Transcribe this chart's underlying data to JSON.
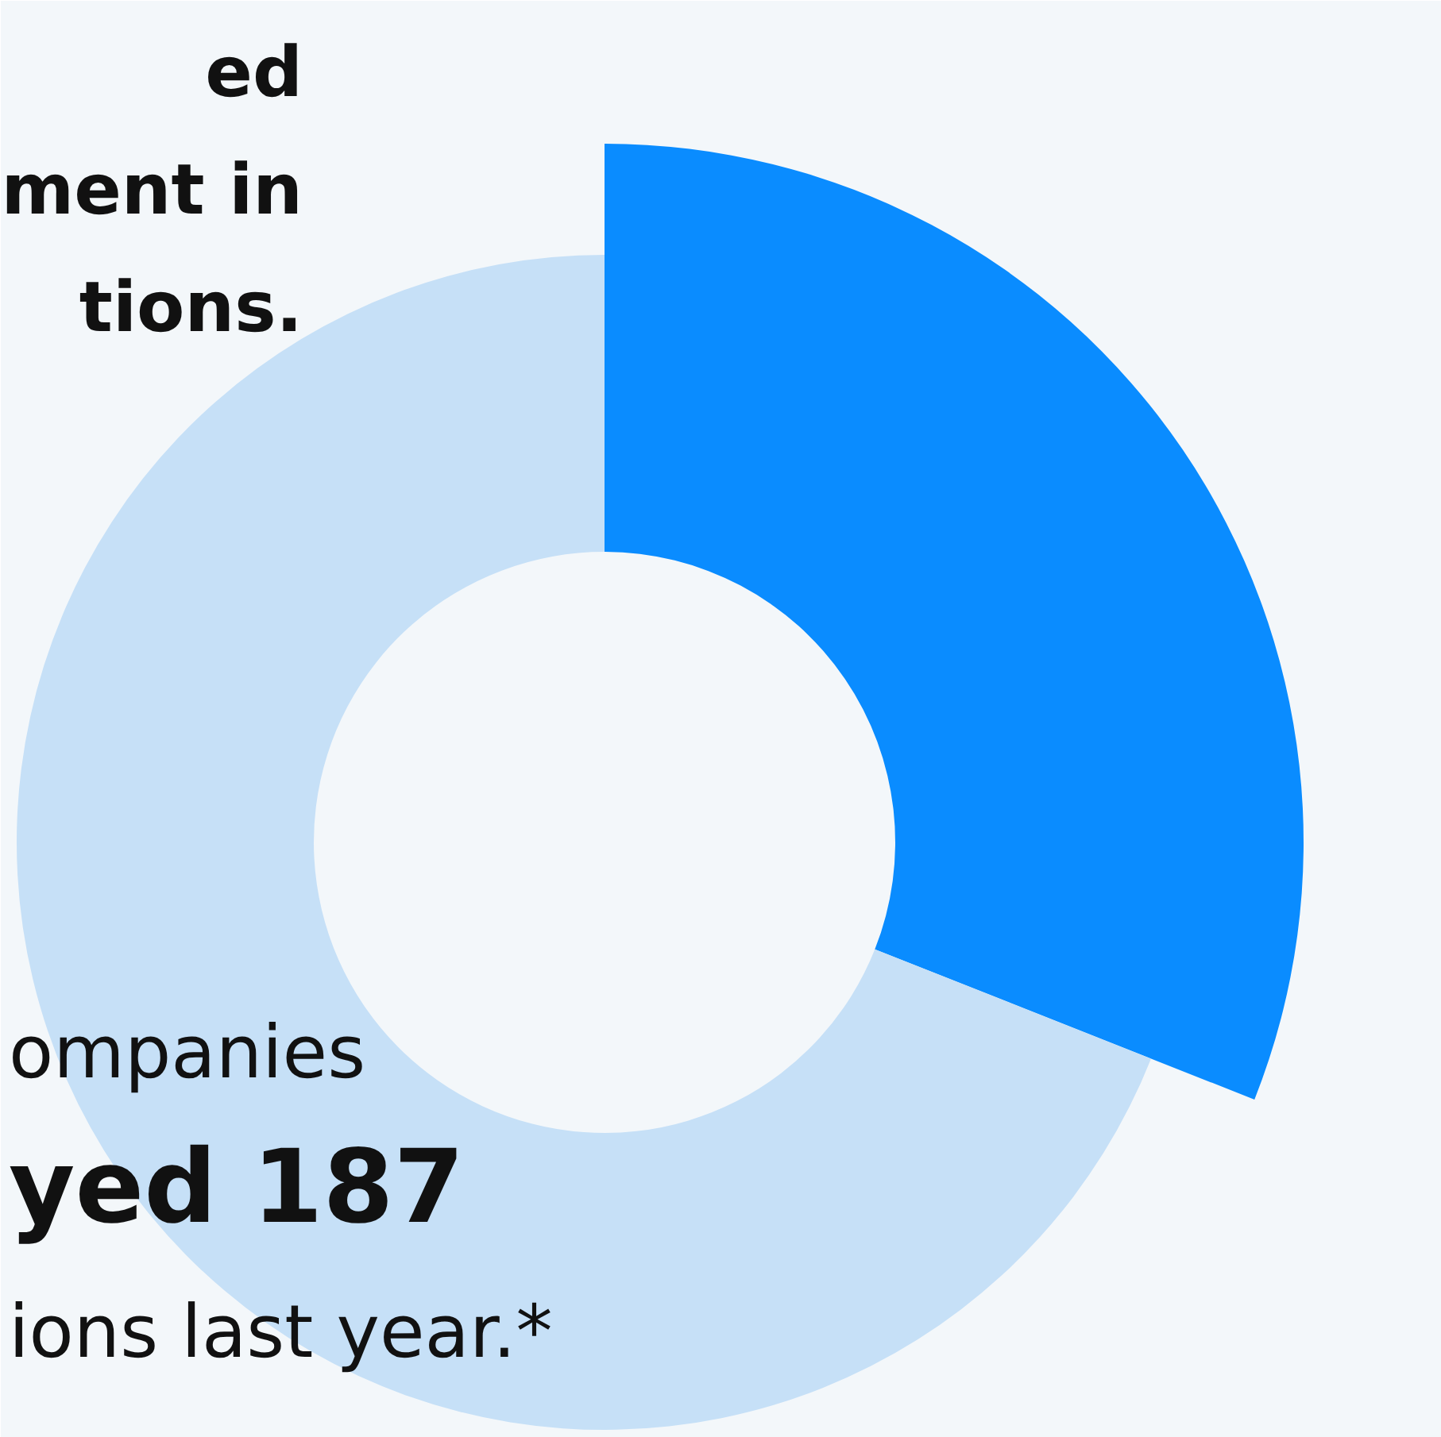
{
  "chart_data": {
    "type": "donut",
    "title": "ed\nment in\ntions.",
    "categories": [
      null,
      null
    ],
    "values": [
      31,
      69
    ],
    "colors": [
      "#0a8cff",
      "#c6e0f7"
    ],
    "annotations": [
      "ompanies",
      "yed 187",
      "ions last year.*"
    ]
  }
}
